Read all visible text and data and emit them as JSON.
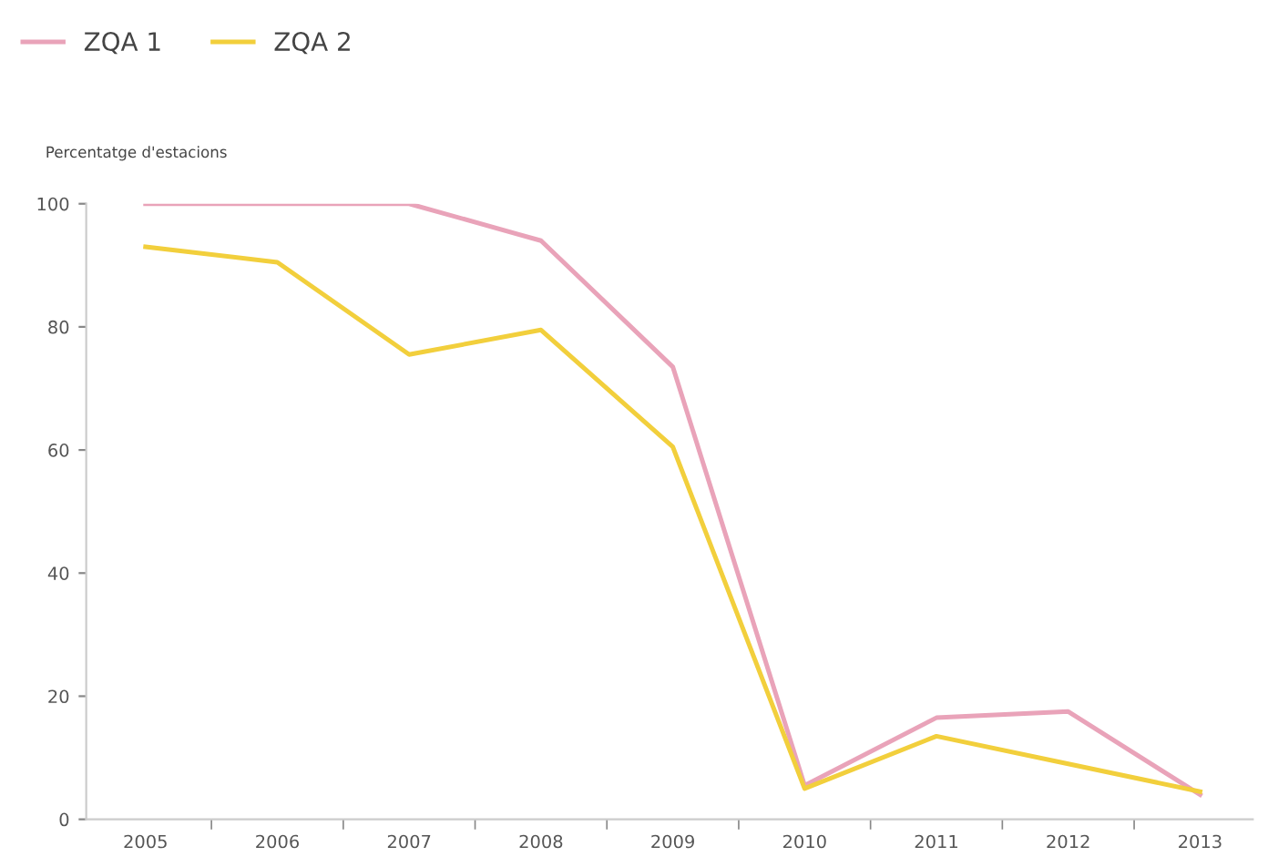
{
  "chart_data": {
    "type": "line",
    "ylabel": "Percentatge d'estacions",
    "categories": [
      "2005",
      "2006",
      "2007",
      "2008",
      "2009",
      "2010",
      "2011",
      "2012",
      "2013"
    ],
    "series": [
      {
        "name": "ZQA 1",
        "color": "#e9a3b9",
        "values": [
          100,
          100,
          100,
          94,
          73.5,
          5.5,
          16.5,
          17.5,
          4
        ]
      },
      {
        "name": "ZQA 2",
        "color": "#f2cf3c",
        "values": [
          93,
          90.5,
          75.5,
          79.5,
          60.5,
          5,
          13.5,
          9,
          4.5
        ]
      }
    ],
    "ylim": [
      0,
      100
    ],
    "yticks": [
      0,
      20,
      40,
      60,
      80,
      100
    ],
    "grid": false,
    "legend": "top left",
    "marker": "none",
    "line_style": "solid"
  }
}
